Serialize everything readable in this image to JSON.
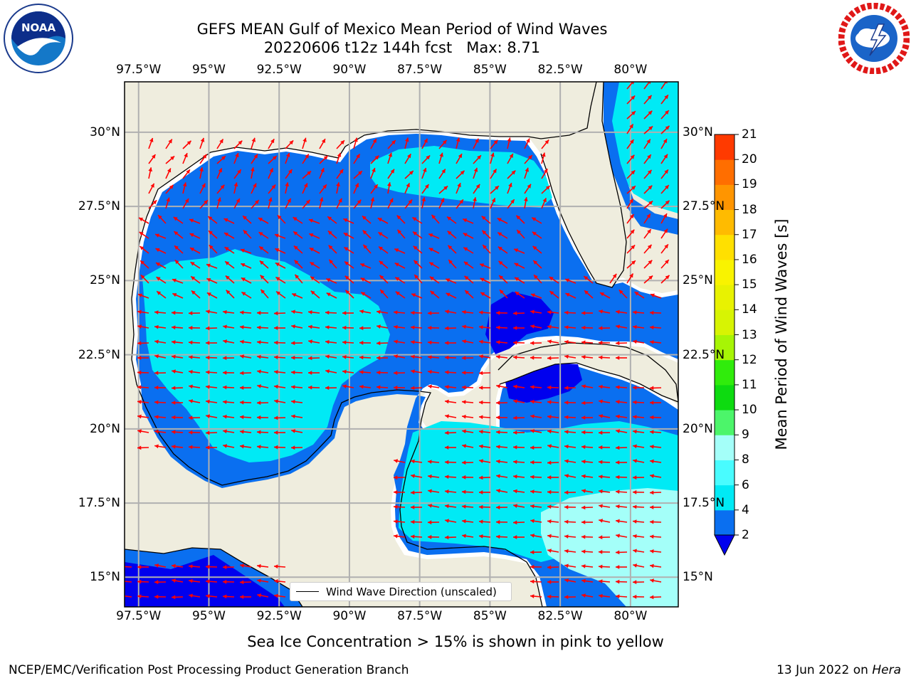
{
  "figure": {
    "title_line1": "GEFS MEAN Gulf of Mexico Mean Period of Wind Waves",
    "title_line2": "20220606 t12z 144h fcst   Max: 8.71",
    "legend_label": "Wind Wave Direction (unscaled)",
    "note": "Sea Ice Concentration > 15% is shown in pink to yellow",
    "footer_left": "NCEP/EMC/Verification Post Processing Product Generation Branch",
    "footer_date": "13 Jun 2022 on",
    "footer_machine": "Hera"
  },
  "logos": {
    "left": {
      "name": "NOAA",
      "ring_text": "NATIONAL OCEANIC AND ATMOSPHERIC ADMINISTRATION · U.S. DEPARTMENT OF COMMERCE"
    },
    "right": {
      "ring_text": "NATIONAL WEATHER SERVICE"
    }
  },
  "map": {
    "lon_ticks": [
      "97.5°W",
      "95°W",
      "92.5°W",
      "90°W",
      "87.5°W",
      "85°W",
      "82.5°W",
      "80°W"
    ],
    "lat_ticks_left": [
      "30°N",
      "27.5°N",
      "25°N",
      "22.5°N",
      "20°N",
      "17.5°N",
      "15°N"
    ],
    "lat_ticks_right": [
      "30°N",
      "27.5°N",
      "25°N",
      "22.5°N",
      "20°N",
      "17.5°N",
      "15°N"
    ],
    "extent": {
      "lon_min": -98.0,
      "lon_max": -78.3,
      "lat_min": 14.0,
      "lat_max": 31.7
    },
    "colors": {
      "land": "#efedde",
      "coast": "#000000",
      "grid": "#b0b0b0",
      "arrow": "#ff0000"
    }
  },
  "colorbar": {
    "label": "Mean Period of Wind Waves [s]",
    "tick_labels": [
      "2",
      "4",
      "6",
      "8",
      "9",
      "10",
      "11",
      "12",
      "13",
      "14",
      "15",
      "16",
      "17",
      "18",
      "19",
      "20",
      "21"
    ],
    "bounds": [
      2,
      4,
      6,
      8,
      9,
      10,
      11,
      12,
      13,
      14,
      15,
      16,
      17,
      18,
      19,
      20,
      21
    ],
    "colors": [
      "#0a6ff0",
      "#00eaf5",
      "#49fcff",
      "#a4fff9",
      "#4cf56a",
      "#0ddb10",
      "#30ec0c",
      "#a7f505",
      "#d7f403",
      "#e8f201",
      "#f9f300",
      "#ffe000",
      "#ffbb00",
      "#ff9500",
      "#ff6e00",
      "#ff3a00",
      "#ff0000"
    ],
    "under_color": "#0000ee",
    "extend": "min"
  }
}
